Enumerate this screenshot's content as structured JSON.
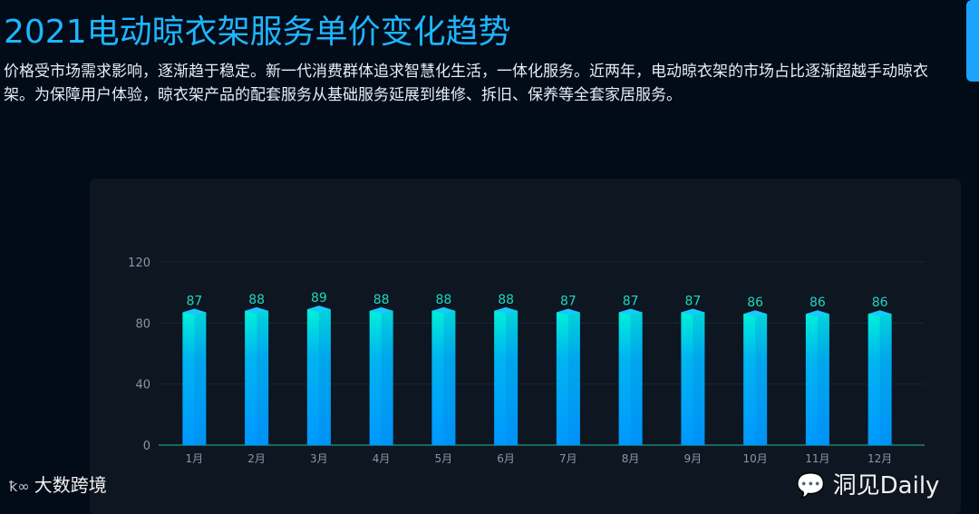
{
  "title": "2021电动晾衣架服务单价变化趋势",
  "description": "价格受市场需求影响，逐渐趋于稳定。新一代消费群体追求智慧化生活，一体化服务。近两年，电动晾衣架的市场占比逐渐超越手动晾衣架。为保障用户体验，晾衣架产品的配套服务从基础服务延展到维修、拆旧、保养等全套家居服务。",
  "watermarks": {
    "left": "大数跨境",
    "right": "洞见Daily"
  },
  "colors": {
    "title": "#1eb6ff",
    "bar_top": "#00f0d8",
    "bar_bottom": "#0098ff",
    "label": "#1fd6c0"
  },
  "chart_data": {
    "type": "bar",
    "categories": [
      "1月",
      "2月",
      "3月",
      "4月",
      "5月",
      "6月",
      "7月",
      "8月",
      "9月",
      "10月",
      "11月",
      "12月"
    ],
    "values": [
      87,
      88,
      89,
      88,
      88,
      88,
      87,
      87,
      87,
      86,
      86,
      86
    ],
    "yticks": [
      0,
      40,
      80,
      120
    ],
    "ylim": [
      0,
      120
    ],
    "grid": true,
    "data_labels": true
  }
}
